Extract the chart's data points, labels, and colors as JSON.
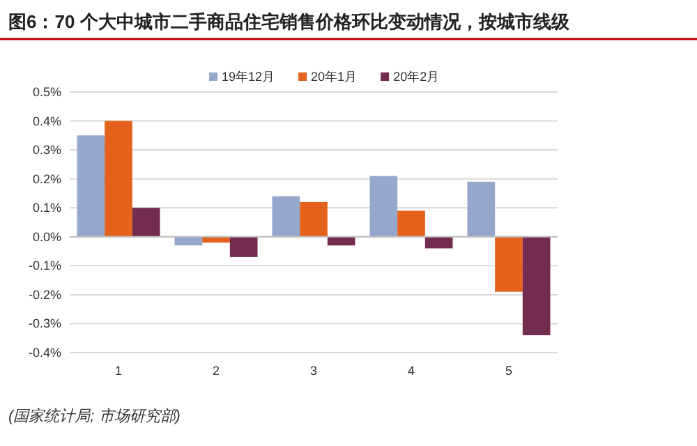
{
  "chart_data": {
    "type": "bar",
    "title": "图6：70 个大中城市二手商品住宅销售价格环比变动情况，按城市线级",
    "categories": [
      "1",
      "2",
      "3",
      "4",
      "5"
    ],
    "series": [
      {
        "name": "19年12月",
        "color": "#95a8cc",
        "values": [
          0.35,
          -0.03,
          0.14,
          0.21,
          0.19
        ]
      },
      {
        "name": "20年1月",
        "color": "#e4621c",
        "values": [
          0.4,
          -0.02,
          0.12,
          0.09,
          -0.19
        ]
      },
      {
        "name": "20年2月",
        "color": "#722c4e",
        "values": [
          0.1,
          -0.07,
          -0.03,
          -0.04,
          -0.34
        ]
      }
    ],
    "ylim": [
      -0.4,
      0.5
    ],
    "yticks": [
      {
        "value": -0.4,
        "label": "-0.4%"
      },
      {
        "value": -0.3,
        "label": "-0.3%"
      },
      {
        "value": -0.2,
        "label": "-0.2%"
      },
      {
        "value": -0.1,
        "label": "-0.1%"
      },
      {
        "value": 0,
        "label": "0.0%"
      },
      {
        "value": 0.1,
        "label": "0.1%"
      },
      {
        "value": 0.2,
        "label": "0.2%"
      },
      {
        "value": 0.3,
        "label": "0.3%"
      },
      {
        "value": 0.4,
        "label": "0.4%"
      },
      {
        "value": 0.5,
        "label": "0.5%"
      }
    ],
    "grid": "y",
    "legend": "top",
    "annotations": [
      "(国家统计局; 市场研究部)"
    ]
  }
}
